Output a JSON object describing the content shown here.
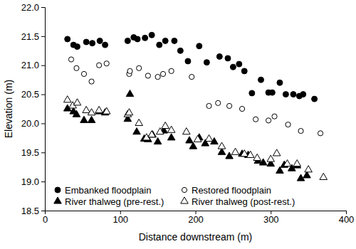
{
  "chart_data": {
    "type": "scatter",
    "x_label": "Distance downstream (m)",
    "y_label": "Elevation (m)",
    "xlim": [
      0,
      400
    ],
    "xticks": [
      0,
      100,
      200,
      300,
      400
    ],
    "ylim": [
      18.5,
      22.0
    ],
    "yticks": [
      18.5,
      {
        "value": 19,
        "label": "19.0"
      },
      19.5,
      {
        "value": 20,
        "label": "20.0"
      },
      20.5,
      {
        "value": 21,
        "label": "21.0"
      },
      21.5,
      {
        "value": 22,
        "label": "22.0"
      }
    ],
    "legend": "lower left",
    "series": [
      {
        "name": "Embanked floodplain",
        "color": "#000000",
        "marker": "circle",
        "x": [
          30,
          38,
          43,
          55,
          63,
          73,
          80,
          110,
          118,
          123,
          133,
          142,
          152,
          160,
          172,
          180,
          190,
          205,
          215,
          232,
          243,
          250,
          258,
          265,
          275,
          287,
          297,
          302,
          312,
          320,
          330,
          338,
          343,
          358
        ],
        "values": [
          21.45,
          21.35,
          21.32,
          21.4,
          21.38,
          21.42,
          21.35,
          21.42,
          21.48,
          21.45,
          21.47,
          21.52,
          21.35,
          21.42,
          21.42,
          21.25,
          21.07,
          21.33,
          21.05,
          21.15,
          21.12,
          20.97,
          21.02,
          20.9,
          20.52,
          20.75,
          20.53,
          20.53,
          20.7,
          20.5,
          20.5,
          20.47,
          20.5,
          20.42
        ]
      },
      {
        "name": "Restored floodplain",
        "color": "#000000",
        "marker": "circle-open",
        "x": [
          35,
          42,
          52,
          62,
          72,
          82,
          112,
          113,
          125,
          137,
          150,
          157,
          168,
          195,
          218,
          230,
          245,
          262,
          280,
          297,
          305,
          323,
          340,
          366
        ],
        "values": [
          21.1,
          20.95,
          20.85,
          20.72,
          21.0,
          21.03,
          20.85,
          20.9,
          20.95,
          20.82,
          20.8,
          20.85,
          20.9,
          20.8,
          20.3,
          20.35,
          20.3,
          20.25,
          20.07,
          20.05,
          20.12,
          19.98,
          19.87,
          19.83
        ]
      },
      {
        "name": "River thalweg (pre-rest.)",
        "color": "#000000",
        "marker": "triangle",
        "x": [
          30,
          38,
          42,
          52,
          62,
          72,
          80,
          110,
          113,
          122,
          132,
          137,
          143,
          150,
          158,
          168,
          192,
          197,
          205,
          213,
          225,
          235,
          245,
          262,
          270,
          283,
          290,
          300,
          312,
          318,
          328,
          335,
          340,
          348
        ],
        "values": [
          20.25,
          20.2,
          20.15,
          20.05,
          20.05,
          20.2,
          20.18,
          20.07,
          20.5,
          19.85,
          19.73,
          19.72,
          19.8,
          19.68,
          19.87,
          19.75,
          19.7,
          19.6,
          19.75,
          19.65,
          19.68,
          19.5,
          19.43,
          19.47,
          19.45,
          19.35,
          19.32,
          19.3,
          19.18,
          19.28,
          19.22,
          19.27,
          19.05,
          19.1
        ]
      },
      {
        "name": "River thalweg (post-rest.)",
        "color": "#000000",
        "marker": "triangle-open",
        "x": [
          30,
          37,
          43,
          55,
          62,
          72,
          82,
          110,
          112,
          125,
          135,
          142,
          153,
          160,
          168,
          188,
          203,
          218,
          235,
          253,
          265,
          273,
          282,
          300,
          308,
          322,
          335,
          350,
          370
        ],
        "values": [
          20.4,
          20.3,
          20.35,
          20.22,
          20.18,
          20.22,
          20.2,
          20.15,
          20.18,
          20.0,
          19.75,
          19.8,
          19.85,
          19.95,
          19.88,
          19.85,
          19.72,
          19.73,
          19.6,
          19.5,
          19.47,
          19.45,
          19.4,
          19.38,
          19.48,
          19.3,
          19.3,
          19.2,
          19.07
        ]
      }
    ]
  }
}
